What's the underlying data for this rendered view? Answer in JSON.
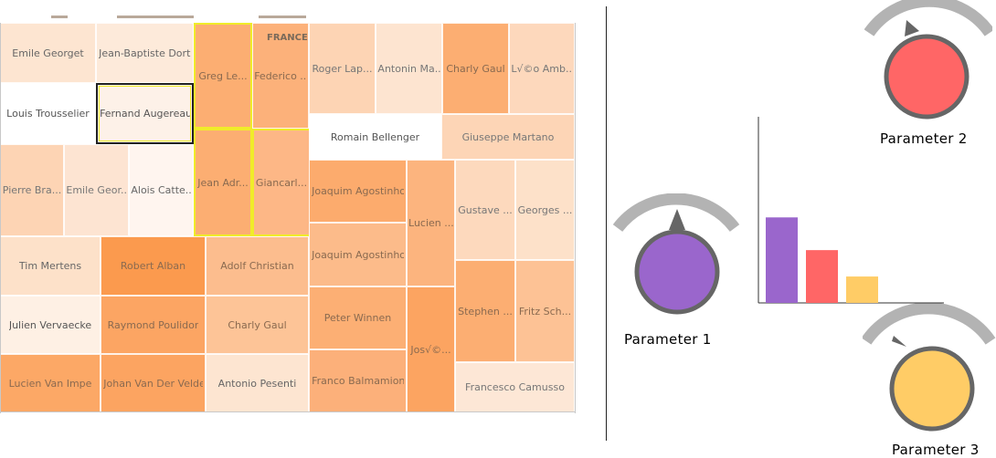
{
  "treemap": {
    "group_label": "FRANCE",
    "cells": [
      {
        "label": "Emile Georget",
        "color": "#fde5d1",
        "text": "#666"
      },
      {
        "label": "Jean-Baptiste Dort...",
        "color": "#fdeada",
        "text": "#666"
      },
      {
        "label": "Louis Trousselier",
        "color": "#ffffff",
        "text": "#555"
      },
      {
        "label": "Fernand Augereau",
        "color": "#fdf1e8",
        "text": "#555"
      },
      {
        "label": "Greg Le...",
        "color": "#fcae72",
        "text": "#8a6a50"
      },
      {
        "label": "Federico ...",
        "color": "#fcb17a",
        "text": "#8a6a50"
      },
      {
        "label": "Jean Adr...",
        "color": "#fcae72",
        "text": "#8a6a50"
      },
      {
        "label": "Giancarl...",
        "color": "#fdb786",
        "text": "#8a6a50"
      },
      {
        "label": "Roger Lap...",
        "color": "#fdd4b4",
        "text": "#777"
      },
      {
        "label": "Antonin Ma...",
        "color": "#fde4d0",
        "text": "#777"
      },
      {
        "label": "Charly Gaul",
        "color": "#fcae72",
        "text": "#8a6a50"
      },
      {
        "label": "L√©o Amb...",
        "color": "#fdd8bc",
        "text": "#777"
      },
      {
        "label": "Romain Bellenger",
        "color": "#ffffff",
        "text": "#555"
      },
      {
        "label": "Giuseppe Martano",
        "color": "#fdd5b6",
        "text": "#777"
      },
      {
        "label": "Pierre Bra...",
        "color": "#fdd4b4",
        "text": "#777"
      },
      {
        "label": "Emile Geor...",
        "color": "#fde4d2",
        "text": "#777"
      },
      {
        "label": "Alois Catte...",
        "color": "#fff5ef",
        "text": "#666"
      },
      {
        "label": "Joaquim Agostinho",
        "color": "#fcab6d",
        "text": "#8a6a50"
      },
      {
        "label": "Joaquim Agostinho",
        "color": "#fcbb8a",
        "text": "#8a6a50"
      },
      {
        "label": "Lucien ...",
        "color": "#fcb47e",
        "text": "#8a6a50"
      },
      {
        "label": "Gustave ...",
        "color": "#fdd9bd",
        "text": "#777"
      },
      {
        "label": "Georges ...",
        "color": "#fde1c9",
        "text": "#777"
      },
      {
        "label": "Tim Mertens",
        "color": "#fde1c9",
        "text": "#666"
      },
      {
        "label": "Robert Alban",
        "color": "#fb9a4e",
        "text": "#8a6a50"
      },
      {
        "label": "Adolf Christian",
        "color": "#fcbd8e",
        "text": "#8a6a50"
      },
      {
        "label": "Julien Vervaecke",
        "color": "#fef0e4",
        "text": "#555"
      },
      {
        "label": "Raymond Poulidor",
        "color": "#fca563",
        "text": "#8a6a50"
      },
      {
        "label": "Charly Gaul",
        "color": "#fdc497",
        "text": "#8a6a50"
      },
      {
        "label": "Peter Winnen",
        "color": "#fcaf74",
        "text": "#8a6a50"
      },
      {
        "label": "Stephen ...",
        "color": "#fcae72",
        "text": "#8a6a50"
      },
      {
        "label": "Fritz Sch...",
        "color": "#fdc295",
        "text": "#8a6a50"
      },
      {
        "label": "Jos√©...",
        "color": "#fca461",
        "text": "#8a6a50"
      },
      {
        "label": "Lucien Van Impe",
        "color": "#fca866",
        "text": "#8a6a50"
      },
      {
        "label": "Johan Van Der Velde",
        "color": "#fca461",
        "text": "#8a6a50"
      },
      {
        "label": "Antonio Pesenti",
        "color": "#fde5d1",
        "text": "#666"
      },
      {
        "label": "Franco Balmamion",
        "color": "#fcb07a",
        "text": "#8a6a50"
      },
      {
        "label": "Francesco Camusso",
        "color": "#fde7d6",
        "text": "#777"
      }
    ]
  },
  "parameters": [
    {
      "label": "Parameter 1",
      "color": "#9a66cc"
    },
    {
      "label": "Parameter 2",
      "color": "#ff6666"
    },
    {
      "label": "Parameter 3",
      "color": "#ffcc66"
    }
  ],
  "chart_data": {
    "type": "bar",
    "categories": [
      "",
      "",
      ""
    ],
    "values": [
      0.81,
      0.5,
      0.25
    ],
    "ylim": [
      0,
      1
    ],
    "colors": [
      "#9a66cc",
      "#ff6666",
      "#ffcc66"
    ],
    "title": "",
    "xlabel": "",
    "ylabel": ""
  }
}
